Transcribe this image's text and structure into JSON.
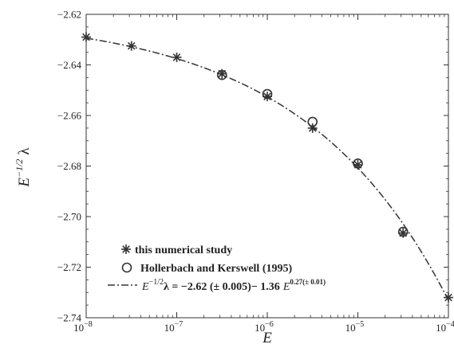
{
  "chart_data": {
    "type": "scatter",
    "xlabel": "E",
    "ylabel": "E",
    "ylabel_exponent": "−1/2",
    "ylabel_symbol": "λ",
    "x_scale": "log",
    "xlim": [
      1e-08,
      0.0001
    ],
    "ylim": [
      -2.74,
      -2.62
    ],
    "x_ticks": [
      {
        "value": 1e-08,
        "base": "10",
        "exp": "−8"
      },
      {
        "value": 1e-07,
        "base": "10",
        "exp": "−7"
      },
      {
        "value": 1e-06,
        "base": "10",
        "exp": "−6"
      },
      {
        "value": 1e-05,
        "base": "10",
        "exp": "−5"
      },
      {
        "value": 0.0001,
        "base": "10",
        "exp": "−4"
      }
    ],
    "y_ticks": [
      {
        "value": -2.62,
        "label": "−2.62"
      },
      {
        "value": -2.64,
        "label": "−2.64"
      },
      {
        "value": -2.66,
        "label": "−2.66"
      },
      {
        "value": -2.68,
        "label": "−2.68"
      },
      {
        "value": -2.7,
        "label": "−2.70"
      },
      {
        "value": -2.72,
        "label": "−2.72"
      },
      {
        "value": -2.74,
        "label": "−2.74"
      }
    ],
    "grid": false,
    "legend_position": "bottom-left",
    "series": [
      {
        "name": "this numerical study",
        "marker": "asterisk",
        "x": [
          1e-08,
          3.16e-08,
          1e-07,
          3.16e-07,
          1e-06,
          3.16e-06,
          1e-05,
          3.16e-05,
          0.0001
        ],
        "y": [
          -2.629,
          -2.6325,
          -2.637,
          -2.6435,
          -2.6525,
          -2.665,
          -2.6795,
          -2.7065,
          -2.732
        ]
      },
      {
        "name": "Hollerbach and Kerswell (1995)",
        "marker": "circle",
        "x": [
          3.16e-07,
          1e-06,
          3.16e-06,
          1e-05,
          3.16e-05
        ],
        "y": [
          -2.644,
          -2.6515,
          -2.6625,
          -2.679,
          -2.706
        ]
      },
      {
        "name": "fit",
        "line": "dash-dot",
        "formula_parts": {
          "lhs_base": "E",
          "lhs_exp": "−1/2",
          "mid": "λ = −2.62 (± 0.005)− 1.36",
          "rhs_base": "E",
          "rhs_exp": "0.27(± 0.01)"
        },
        "params": {
          "a": -2.62,
          "b": 1.36,
          "exponent": 0.27
        }
      }
    ]
  }
}
